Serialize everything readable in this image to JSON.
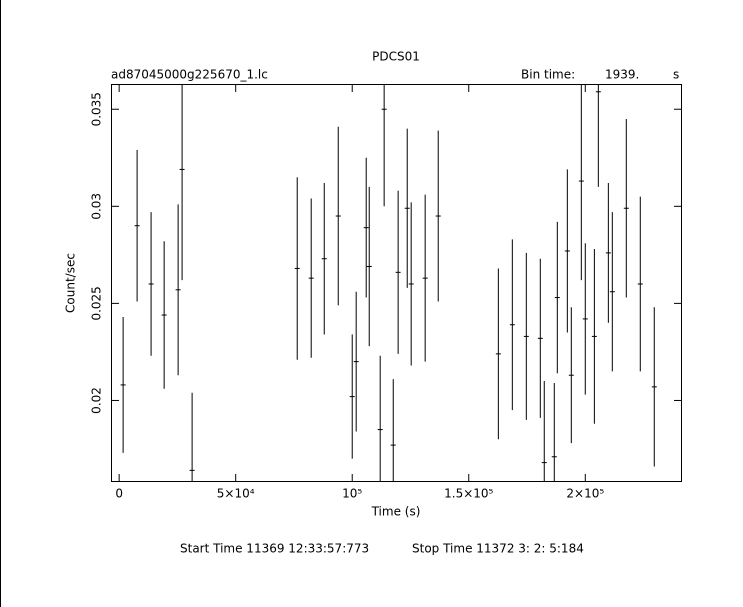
{
  "chart_data": {
    "type": "errorbar",
    "title": "PDCS01",
    "file_label": "ad87045000g225670_1.lc",
    "bin_time_label": "Bin time:",
    "bin_time": "1939.",
    "bin_time_unit": "s",
    "x_label": "Time (s)",
    "y_label": "Count/sec",
    "start_time": "Start Time 11369 12:33:57:773",
    "stop_time": "Stop Time 11372  3: 2: 5:184",
    "color": "#000000",
    "xlim": [
      -3500,
      241500
    ],
    "ylim": [
      0.0158,
      0.0363
    ],
    "xticks": [
      0,
      {
        "value": 50000,
        "label": "5×10⁴"
      },
      {
        "value": 100000,
        "label": "10⁵"
      },
      {
        "value": 150000,
        "label": "1.5×10⁵"
      },
      {
        "value": 200000,
        "label": "2×10⁵"
      }
    ],
    "yticks": [
      0.02,
      0.025,
      0.03,
      0.035
    ],
    "x": [
      1700,
      7700,
      13700,
      19300,
      25300,
      27000,
      31300,
      76400,
      82400,
      88000,
      94000,
      100000,
      101700,
      106000,
      107300,
      112000,
      113700,
      117600,
      119700,
      123600,
      125300,
      131300,
      136900,
      162700,
      168700,
      174700,
      180700,
      182400,
      186700,
      188000,
      192300,
      194000,
      198300,
      200000,
      203900,
      205600,
      209900,
      211600,
      217600,
      223600,
      229600
    ],
    "values": [
      0.0208,
      0.029,
      0.026,
      0.0244,
      0.0257,
      0.0319,
      0.0164,
      0.0268,
      0.0263,
      0.0273,
      0.0295,
      0.0202,
      0.022,
      0.0289,
      0.0269,
      0.0185,
      0.035,
      0.0177,
      0.0266,
      0.0299,
      0.026,
      0.0263,
      0.0295,
      0.0224,
      0.0239,
      0.0233,
      0.0232,
      0.0168,
      0.0171,
      0.0253,
      0.0277,
      0.0213,
      0.0313,
      0.0242,
      0.0233,
      0.0359,
      0.0276,
      0.0256,
      0.0299,
      0.026,
      0.0207
    ],
    "errors": [
      0.0035,
      0.0039,
      0.0037,
      0.0038,
      0.0044,
      0.0057,
      0.004,
      0.0047,
      0.0041,
      0.0039,
      0.0046,
      0.0032,
      0.0036,
      0.0036,
      0.0041,
      0.0038,
      0.005,
      0.0034,
      0.0042,
      0.0041,
      0.0042,
      0.0043,
      0.0044,
      0.0044,
      0.0044,
      0.0043,
      0.0041,
      0.0042,
      0.0038,
      0.0039,
      0.0042,
      0.0035,
      0.0051,
      0.0039,
      0.0045,
      0.0049,
      0.0036,
      0.0041,
      0.0046,
      0.0045,
      0.0041
    ]
  }
}
